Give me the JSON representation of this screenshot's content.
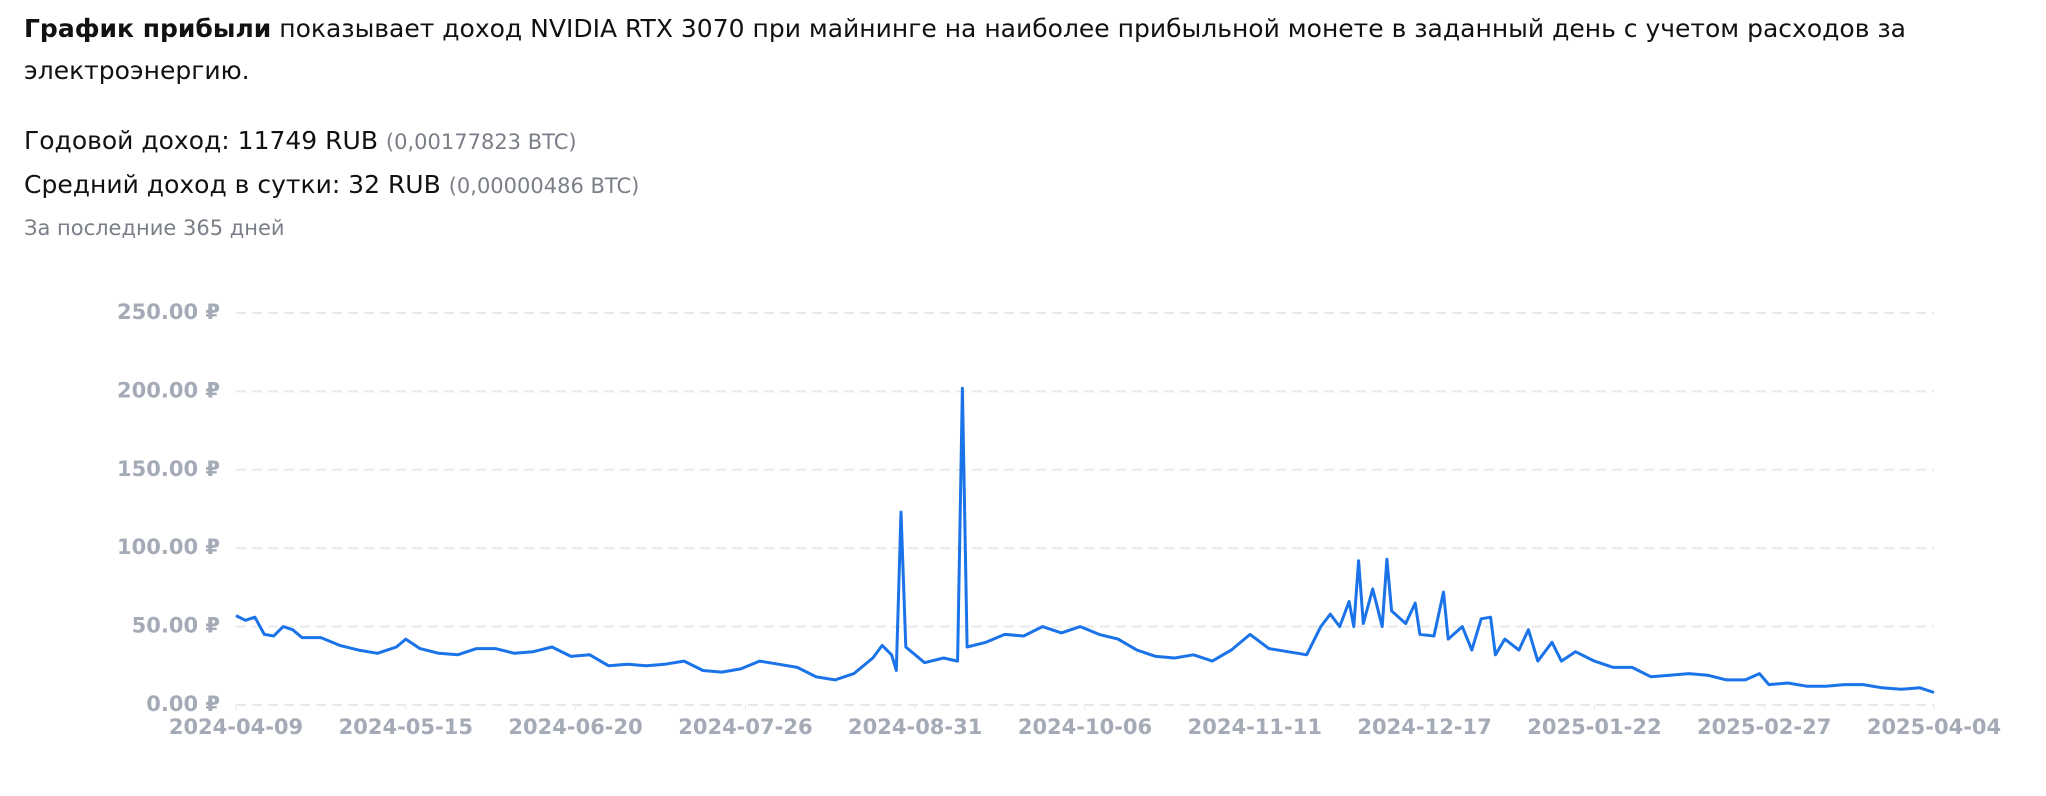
{
  "header": {
    "bold": "График прибыли",
    "text": "показывает доход NVIDIA RTX 3070 при майнинге на наиболее прибыльной монете в заданный день с учетом расходов за",
    "text2": "электроэнергию.",
    "yearly": "Годовой доход: 11749 RUB",
    "yearly_btc": "(0,00177823 BTC)",
    "daily": "Средний доход в сутки: 32 RUB",
    "daily_btc": "(0,00000486 BTC)",
    "period": "За последние 365 дней"
  },
  "chart_data": {
    "type": "line",
    "color": "#1a73e8",
    "grid": true,
    "x": [
      "2024-04-09",
      "2024-04-11",
      "2024-04-13",
      "2024-04-15",
      "2024-04-17",
      "2024-04-19",
      "2024-04-21",
      "2024-04-23",
      "2024-04-27",
      "2024-05-01",
      "2024-05-05",
      "2024-05-09",
      "2024-05-13",
      "2024-05-15",
      "2024-05-18",
      "2024-05-22",
      "2024-05-26",
      "2024-05-30",
      "2024-06-03",
      "2024-06-07",
      "2024-06-11",
      "2024-06-15",
      "2024-06-19",
      "2024-06-23",
      "2024-06-27",
      "2024-07-01",
      "2024-07-05",
      "2024-07-09",
      "2024-07-13",
      "2024-07-17",
      "2024-07-21",
      "2024-07-25",
      "2024-07-29",
      "2024-08-02",
      "2024-08-06",
      "2024-08-10",
      "2024-08-14",
      "2024-08-18",
      "2024-08-22",
      "2024-08-24",
      "2024-08-26",
      "2024-08-27",
      "2024-08-28",
      "2024-08-29",
      "2024-09-02",
      "2024-09-06",
      "2024-09-09",
      "2024-09-10",
      "2024-09-11",
      "2024-09-15",
      "2024-09-19",
      "2024-09-23",
      "2024-09-27",
      "2024-10-01",
      "2024-10-05",
      "2024-10-09",
      "2024-10-13",
      "2024-10-17",
      "2024-10-21",
      "2024-10-25",
      "2024-10-29",
      "2024-11-02",
      "2024-11-06",
      "2024-11-10",
      "2024-11-14",
      "2024-11-18",
      "2024-11-22",
      "2024-11-25",
      "2024-11-27",
      "2024-11-29",
      "2024-12-01",
      "2024-12-02",
      "2024-12-03",
      "2024-12-04",
      "2024-12-06",
      "2024-12-08",
      "2024-12-09",
      "2024-12-10",
      "2024-12-13",
      "2024-12-15",
      "2024-12-16",
      "2024-12-19",
      "2024-12-21",
      "2024-12-22",
      "2024-12-25",
      "2024-12-27",
      "2024-12-29",
      "2024-12-31",
      "2025-01-01",
      "2025-01-03",
      "2025-01-06",
      "2025-01-08",
      "2025-01-10",
      "2025-01-13",
      "2025-01-15",
      "2025-01-18",
      "2025-01-22",
      "2025-01-26",
      "2025-01-30",
      "2025-02-03",
      "2025-02-07",
      "2025-02-11",
      "2025-02-15",
      "2025-02-19",
      "2025-02-23",
      "2025-02-26",
      "2025-02-28",
      "2025-03-04",
      "2025-03-08",
      "2025-03-12",
      "2025-03-16",
      "2025-03-20",
      "2025-03-24",
      "2025-03-28",
      "2025-04-01",
      "2025-04-04"
    ],
    "values": [
      57,
      54,
      56,
      45,
      44,
      50,
      48,
      43,
      43,
      38,
      35,
      33,
      37,
      42,
      36,
      33,
      32,
      36,
      36,
      33,
      34,
      37,
      31,
      32,
      25,
      26,
      25,
      26,
      28,
      22,
      21,
      23,
      28,
      26,
      24,
      18,
      16,
      20,
      30,
      38,
      32,
      22,
      123,
      37,
      27,
      30,
      28,
      202,
      37,
      40,
      45,
      44,
      50,
      46,
      50,
      45,
      42,
      35,
      31,
      30,
      32,
      28,
      35,
      45,
      36,
      34,
      32,
      50,
      58,
      50,
      66,
      50,
      92,
      52,
      74,
      50,
      93,
      60,
      52,
      65,
      45,
      44,
      72,
      42,
      50,
      35,
      55,
      56,
      32,
      42,
      35,
      48,
      28,
      40,
      28,
      34,
      28,
      24,
      24,
      18,
      19,
      20,
      19,
      16,
      16,
      20,
      13,
      14,
      12,
      12,
      13,
      13,
      11,
      10,
      11,
      8
    ],
    "xlim": [
      "2024-04-09",
      "2025-04-04"
    ],
    "xticks": [
      "2024-04-09",
      "2024-05-15",
      "2024-06-20",
      "2024-07-26",
      "2024-08-31",
      "2024-10-06",
      "2024-11-11",
      "2024-12-17",
      "2025-01-22",
      "2025-02-27",
      "2025-04-04"
    ],
    "ylim": [
      0,
      250
    ],
    "yticks": [
      {
        "value": 0,
        "label": "0.00 ₽"
      },
      {
        "value": 50,
        "label": "50.00 ₽"
      },
      {
        "value": 100,
        "label": "100.00 ₽"
      },
      {
        "value": 150,
        "label": "150.00 ₽"
      },
      {
        "value": 200,
        "label": "200.00 ₽"
      },
      {
        "value": 250,
        "label": "250.00 ₽"
      }
    ]
  }
}
